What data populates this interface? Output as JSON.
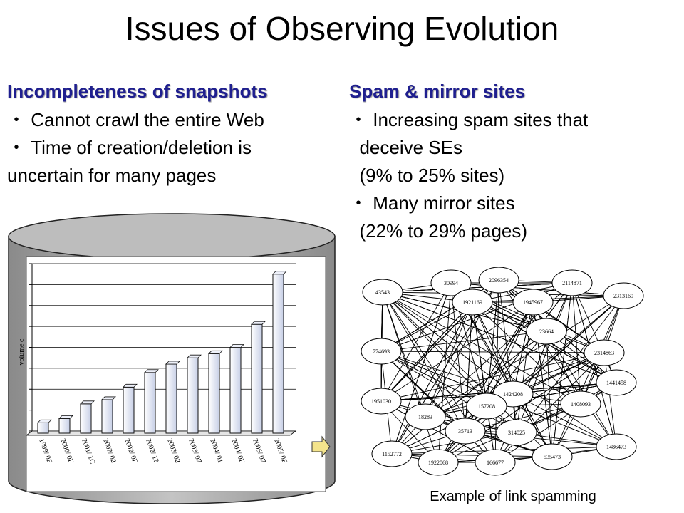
{
  "title": "Issues of Observing Evolution",
  "left": {
    "heading": "Incompleteness of snapshots",
    "lines": [
      "・ Cannot crawl the entire Web",
      "・ Time of creation/deletion  is",
      "uncertain for many pages"
    ]
  },
  "right": {
    "heading": "Spam & mirror sites",
    "lines": [
      "・ Increasing spam sites that",
      "  deceive SEs",
      "  (9% to 25% sites)",
      "・ Many mirror sites",
      "  (22% to 29% pages)"
    ]
  },
  "chart_data": {
    "type": "bar",
    "ylabel": "volume c",
    "categories": [
      "1999/ 0F",
      "2000/ 0F",
      "2001/ 1C",
      "2002/ 02",
      "2002/ 0F",
      "2002/ 1?",
      "2003/ 02",
      "2003/ 07",
      "2004/ 01",
      "2004/ 0F",
      "2005/ 07",
      "2005/ 0F"
    ],
    "values": [
      0.4,
      0.6,
      1.3,
      1.5,
      2.1,
      2.8,
      3.2,
      3.5,
      3.7,
      4.0,
      5.1,
      7.5
    ],
    "ylim": [
      0,
      8
    ],
    "grid": true
  },
  "graph": {
    "caption": "Example of link spamming",
    "nodes": [
      "43543",
      "30994",
      "2096354",
      "2114871",
      "2313169",
      "1921169",
      "1945967",
      "774693",
      "23664",
      "2314863",
      "1441458",
      "1951030",
      "1424208",
      "1408093",
      "1152772",
      "1922068",
      "166677",
      "535473",
      "1486473",
      "18283",
      "157208",
      "35713",
      "314025"
    ]
  }
}
